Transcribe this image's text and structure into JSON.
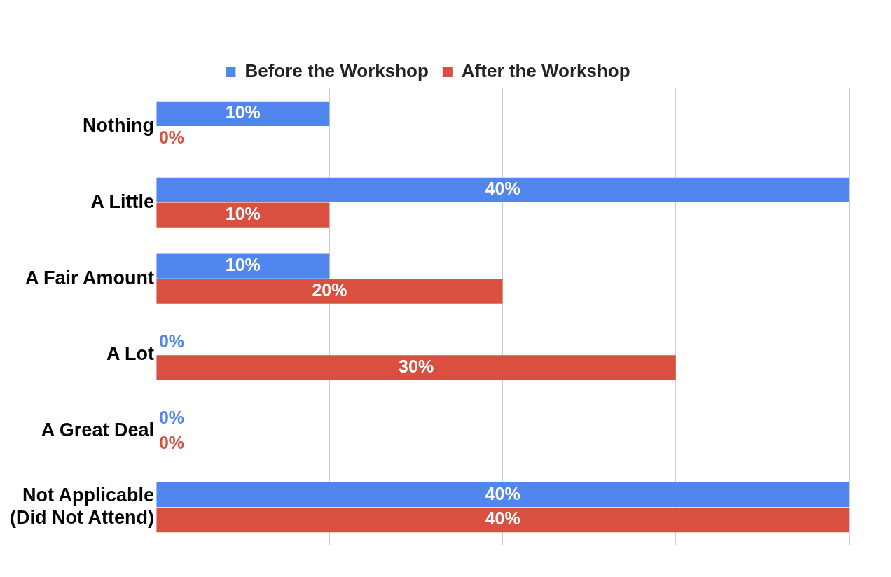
{
  "chart_data": {
    "type": "bar",
    "orientation": "horizontal",
    "categories": [
      "Nothing",
      "A Little",
      "A Fair Amount",
      "A Lot",
      "A Great Deal",
      "Not Applicable\n(Did Not Attend)"
    ],
    "series": [
      {
        "name": "Before the Workshop",
        "color": "#5086ee",
        "values": [
          10,
          40,
          10,
          0,
          0,
          40
        ],
        "value_labels": [
          "10%",
          "40%",
          "10%",
          "0%",
          "0%",
          "40%"
        ]
      },
      {
        "name": "After the Workshop",
        "color": "#d95040",
        "values": [
          0,
          10,
          20,
          30,
          0,
          40
        ],
        "value_labels": [
          "0%",
          "10%",
          "20%",
          "30%",
          "0%",
          "40%"
        ]
      }
    ],
    "xlim": [
      0,
      40
    ],
    "xticks": [
      {
        "value": 0,
        "label": null
      },
      {
        "value": 10,
        "label": null
      },
      {
        "value": 20,
        "label": null
      },
      {
        "value": 30,
        "label": null
      },
      {
        "value": 40,
        "label": null
      }
    ],
    "tick_labels": "y",
    "grid": "x",
    "legend": "top"
  }
}
